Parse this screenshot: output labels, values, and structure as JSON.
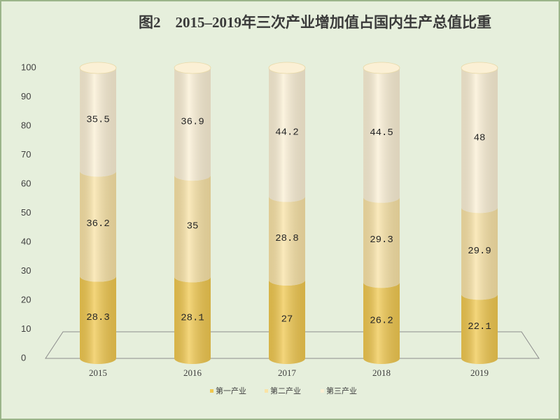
{
  "chart_data": {
    "type": "stacked_cylinder",
    "title": "图2　2015–2019年三次产业增加值占国内生产总值比重",
    "categories": [
      "2015",
      "2016",
      "2017",
      "2018",
      "2019"
    ],
    "series": [
      {
        "name": "第一产业",
        "color": "#f0c850",
        "values": [
          28.3,
          28.1,
          27,
          26.2,
          22.1
        ]
      },
      {
        "name": "第二产业",
        "color": "#f9e3a6",
        "values": [
          36.2,
          35,
          28.8,
          29.3,
          29.9
        ]
      },
      {
        "name": "第三产业",
        "color": "#fbf0d5",
        "values": [
          35.5,
          36.9,
          44.2,
          44.5,
          48
        ]
      }
    ],
    "ylim": [
      0,
      100
    ],
    "yticks": [
      0,
      10,
      20,
      30,
      40,
      50,
      60,
      70,
      80,
      90,
      100
    ]
  }
}
